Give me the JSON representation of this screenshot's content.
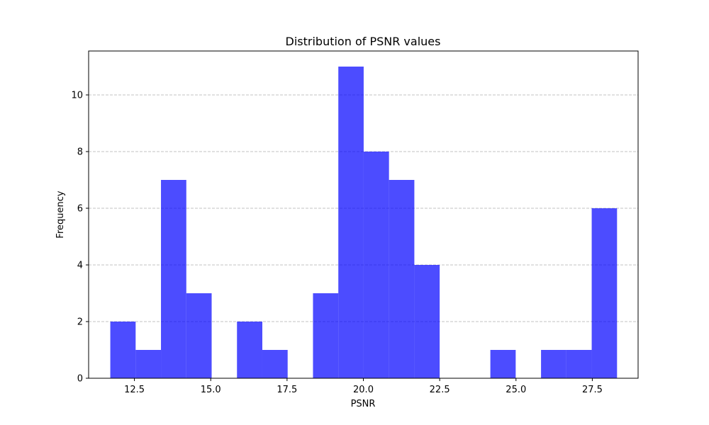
{
  "chart_data": {
    "type": "bar",
    "title": "Distribution of PSNR values",
    "xlabel": "PSNR",
    "ylabel": "Frequency",
    "xlim": [
      11.0,
      29.0
    ],
    "ylim": [
      0,
      11.55
    ],
    "xticks": [
      "12.5",
      "15.0",
      "17.5",
      "20.0",
      "22.5",
      "25.0",
      "27.5"
    ],
    "xtick_values": [
      12.5,
      15.0,
      17.5,
      20.0,
      22.5,
      25.0,
      27.5
    ],
    "yticks": [
      "0",
      "2",
      "4",
      "6",
      "8",
      "10"
    ],
    "ytick_values": [
      0,
      2,
      4,
      6,
      8,
      10
    ],
    "grid": "y-dashed",
    "bar_color": "#0000ff",
    "bar_opacity": 0.7,
    "bins": [
      {
        "x0": 11.71,
        "x1": 12.54,
        "count": 2
      },
      {
        "x0": 12.54,
        "x1": 13.37,
        "count": 1
      },
      {
        "x0": 13.37,
        "x1": 14.2,
        "count": 7
      },
      {
        "x0": 14.2,
        "x1": 15.03,
        "count": 3
      },
      {
        "x0": 15.03,
        "x1": 15.86,
        "count": 0
      },
      {
        "x0": 15.86,
        "x1": 16.69,
        "count": 2
      },
      {
        "x0": 16.69,
        "x1": 17.52,
        "count": 1
      },
      {
        "x0": 17.52,
        "x1": 18.35,
        "count": 0
      },
      {
        "x0": 18.35,
        "x1": 19.18,
        "count": 3
      },
      {
        "x0": 19.18,
        "x1": 20.01,
        "count": 11
      },
      {
        "x0": 20.01,
        "x1": 20.84,
        "count": 8
      },
      {
        "x0": 20.84,
        "x1": 21.67,
        "count": 7
      },
      {
        "x0": 21.67,
        "x1": 22.5,
        "count": 4
      },
      {
        "x0": 22.5,
        "x1": 23.33,
        "count": 0
      },
      {
        "x0": 23.33,
        "x1": 24.16,
        "count": 0
      },
      {
        "x0": 24.16,
        "x1": 24.99,
        "count": 1
      },
      {
        "x0": 24.99,
        "x1": 25.82,
        "count": 0
      },
      {
        "x0": 25.82,
        "x1": 26.65,
        "count": 1
      },
      {
        "x0": 26.65,
        "x1": 27.48,
        "count": 1
      },
      {
        "x0": 27.48,
        "x1": 28.31,
        "count": 6
      }
    ]
  }
}
